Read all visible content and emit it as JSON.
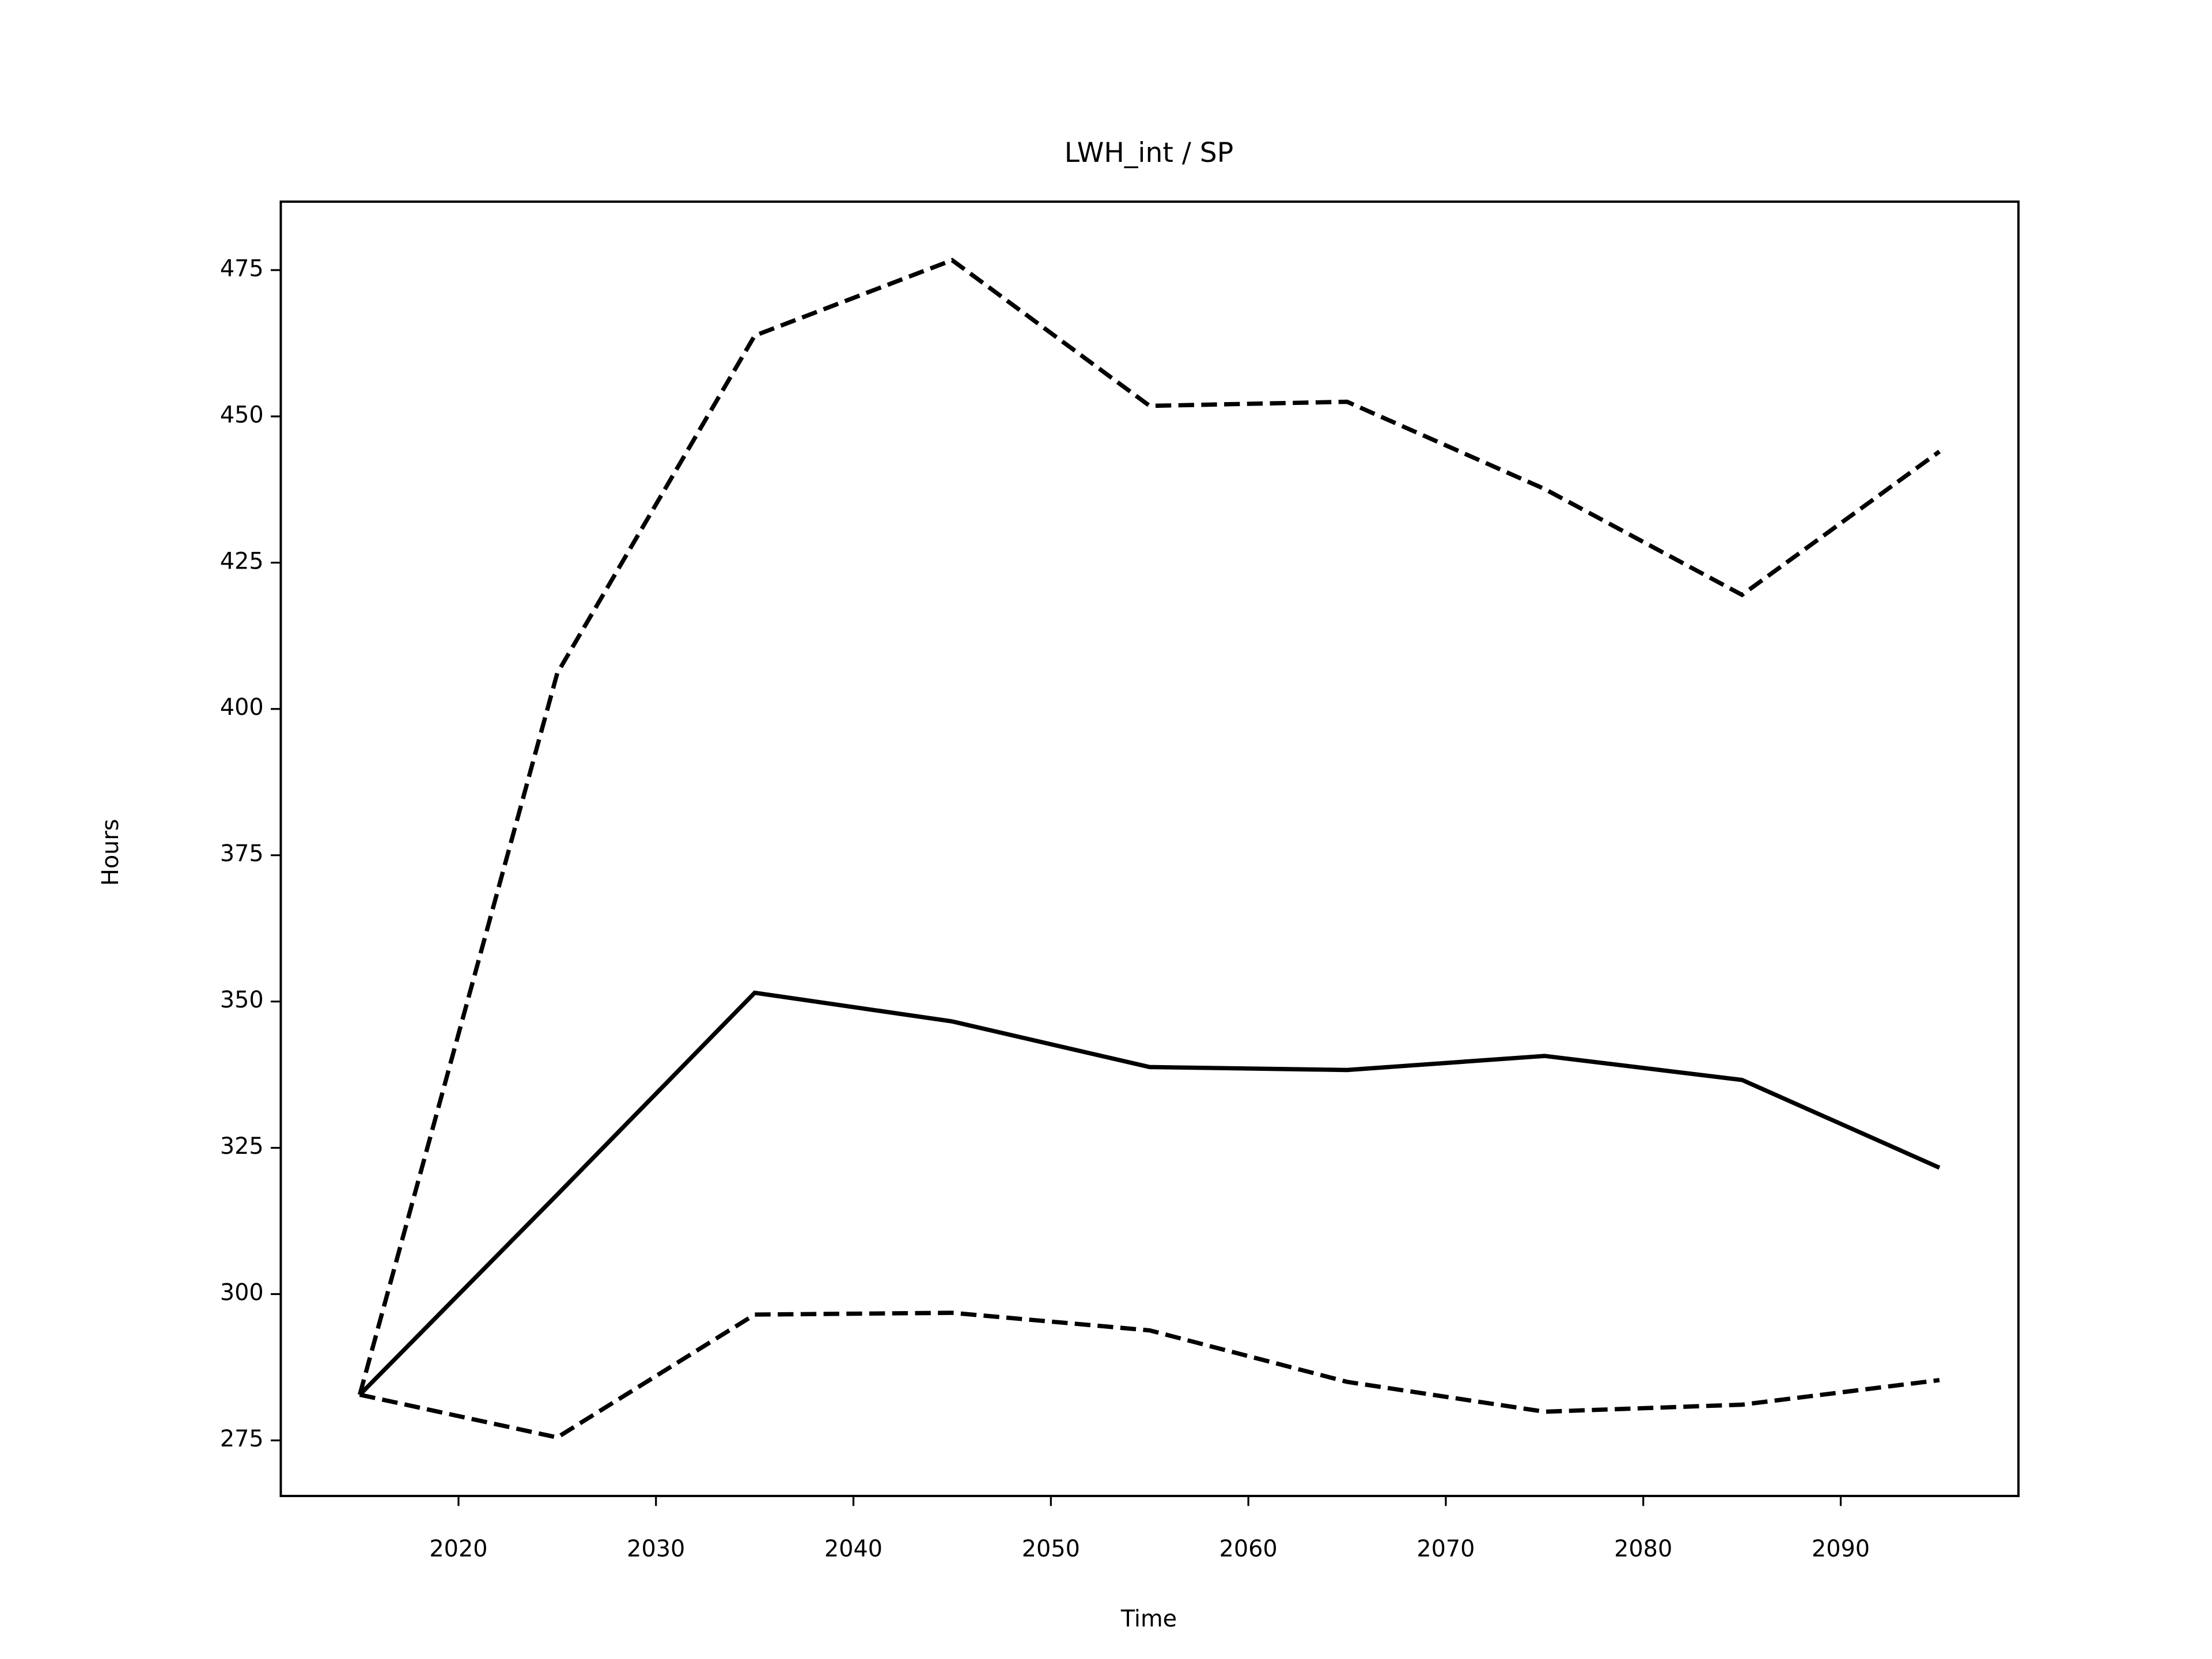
{
  "chart_data": {
    "type": "line",
    "title": "LWH_int / SP",
    "x_label": "Time",
    "y_label": "Hours",
    "x": [
      2015,
      2025,
      2035,
      2045,
      2055,
      2065,
      2075,
      2085,
      2095
    ],
    "series": [
      {
        "color": "#000000",
        "dash": "solid",
        "values": [
          282.8,
          317.0,
          351.5,
          346.6,
          338.8,
          338.3,
          340.7,
          336.6,
          321.6
        ]
      },
      {
        "color": "#000000",
        "dash": "dashed",
        "values": [
          282.8,
          406.1,
          463.8,
          476.7,
          451.8,
          452.5,
          437.6,
          419.5,
          444.0
        ]
      },
      {
        "color": "#000000",
        "dash": "dashed",
        "values": [
          282.8,
          275.5,
          296.5,
          296.8,
          293.8,
          285.0,
          279.9,
          281.1,
          285.3
        ]
      }
    ],
    "xlim": [
      2011,
      2099
    ],
    "xticks": [
      2020,
      2030,
      2040,
      2050,
      2060,
      2070,
      2080,
      2090
    ],
    "ylim": [
      265.5,
      486.7
    ],
    "yticks": [
      275,
      300,
      325,
      350,
      375,
      400,
      425,
      450,
      475
    ],
    "grid": false
  }
}
